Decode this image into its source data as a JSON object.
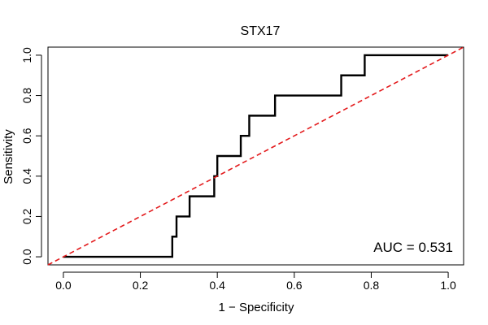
{
  "chart_data": {
    "type": "line",
    "title": "STX17",
    "xlabel": "1 − Specificity",
    "ylabel": "Sensitivity",
    "xlim": [
      -0.04,
      1.04
    ],
    "ylim": [
      -0.04,
      1.04
    ],
    "xticks": [
      0.0,
      0.2,
      0.4,
      0.6,
      0.8,
      1.0
    ],
    "xtick_labels": [
      "0.0",
      "0.2",
      "0.4",
      "0.6",
      "0.8",
      "1.0"
    ],
    "yticks": [
      0.0,
      0.2,
      0.4,
      0.6,
      0.8,
      1.0
    ],
    "ytick_labels": [
      "0.0",
      "0.2",
      "0.4",
      "0.6",
      "0.8",
      "1.0"
    ],
    "grid": false,
    "annotation": "AUC = 0.531",
    "series": [
      {
        "style": "solid",
        "color": "#000000",
        "points": [
          [
            0.0,
            0.0
          ],
          [
            0.283,
            0.0
          ],
          [
            0.283,
            0.1
          ],
          [
            0.294,
            0.1
          ],
          [
            0.294,
            0.2
          ],
          [
            0.328,
            0.2
          ],
          [
            0.328,
            0.3
          ],
          [
            0.392,
            0.3
          ],
          [
            0.392,
            0.4
          ],
          [
            0.4,
            0.4
          ],
          [
            0.4,
            0.5
          ],
          [
            0.461,
            0.5
          ],
          [
            0.461,
            0.6
          ],
          [
            0.483,
            0.6
          ],
          [
            0.483,
            0.7
          ],
          [
            0.55,
            0.7
          ],
          [
            0.55,
            0.8
          ],
          [
            0.722,
            0.8
          ],
          [
            0.722,
            0.9
          ],
          [
            0.783,
            0.9
          ],
          [
            0.783,
            1.0
          ],
          [
            1.0,
            1.0
          ]
        ]
      },
      {
        "style": "dashed",
        "color": "#e31a1c",
        "points": [
          [
            -0.04,
            -0.04
          ],
          [
            1.04,
            1.04
          ]
        ]
      }
    ]
  }
}
